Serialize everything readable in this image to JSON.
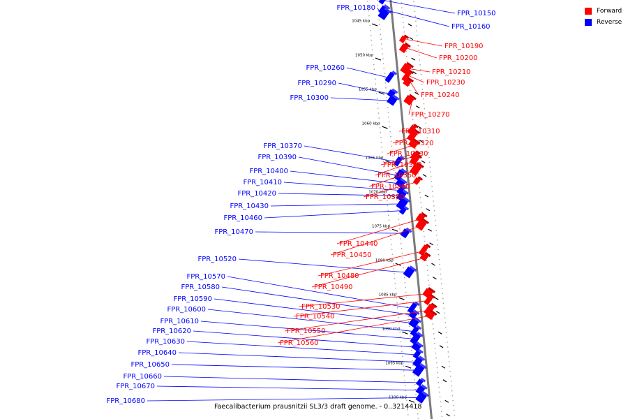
{
  "legend": {
    "forward_label": "Forward",
    "reverse_label": "Reverse",
    "forward_color": "#ff0000",
    "reverse_color": "#0000ff"
  },
  "caption": "Faecalibacterium prausnitzii SL3/3 draft genome. - 0..3214418",
  "axis": {
    "unit": "kbp",
    "ticks": [
      1045,
      1050,
      1055,
      1060,
      1065,
      1070,
      1075,
      1080,
      1085,
      1090,
      1095,
      1100
    ]
  },
  "reverse_genes": [
    {
      "label": "FPR_10150",
      "kbp": 1041.6
    },
    {
      "label": "FPR_10160",
      "kbp": 1043.0
    },
    {
      "label": "FPR_10180",
      "kbp": 1043.6
    },
    {
      "label": "FPR_10260",
      "kbp": 1052.8
    },
    {
      "label": "FPR_10290",
      "kbp": 1055.2
    },
    {
      "label": "FPR_10300",
      "kbp": 1056.2
    },
    {
      "label": "FPR_10370",
      "kbp": 1065.1
    },
    {
      "label": "FPR_10390",
      "kbp": 1067.1
    },
    {
      "label": "FPR_10400",
      "kbp": 1068.3
    },
    {
      "label": "FPR_10410",
      "kbp": 1069.3
    },
    {
      "label": "FPR_10420",
      "kbp": 1070.1
    },
    {
      "label": "FPR_10430",
      "kbp": 1071.3
    },
    {
      "label": "FPR_10460",
      "kbp": 1072.3
    },
    {
      "label": "FPR_10470",
      "kbp": 1075.6
    },
    {
      "label": "FPR_10520",
      "kbp": 1081.3
    },
    {
      "label": "FPR_10570",
      "kbp": 1086.5
    },
    {
      "label": "FPR_10580",
      "kbp": 1087.5
    },
    {
      "label": "FPR_10590",
      "kbp": 1088.7
    },
    {
      "label": "FPR_10600",
      "kbp": 1089.9
    },
    {
      "label": "FPR_10610",
      "kbp": 1091.0
    },
    {
      "label": "FPR_10620",
      "kbp": 1092.2
    },
    {
      "label": "FPR_10630",
      "kbp": 1093.3
    },
    {
      "label": "FPR_10640",
      "kbp": 1094.4
    },
    {
      "label": "FPR_10650",
      "kbp": 1095.6
    },
    {
      "label": "FPR_10660",
      "kbp": 1097.4
    },
    {
      "label": "FPR_10670",
      "kbp": 1098.5
    },
    {
      "label": "FPR_10680",
      "kbp": 1099.6
    }
  ],
  "forward_genes": [
    {
      "label": "FPR_10190",
      "kbp": 1047.5
    },
    {
      "label": "FPR_10200",
      "kbp": 1048.8
    },
    {
      "label": "FPR_10210",
      "kbp": 1051.8
    },
    {
      "label": "FPR_10230",
      "kbp": 1052.9
    },
    {
      "label": "FPR_10240",
      "kbp": 1053.8
    },
    {
      "label": "FPR_10270",
      "kbp": 1056.4
    },
    {
      "label": "FPR_10310",
      "kbp": 1060.7
    },
    {
      "label": "FPR_10320",
      "kbp": 1061.6
    },
    {
      "label": "FPR_10330",
      "kbp": 1062.8
    },
    {
      "label": "FPR_10340",
      "kbp": 1064.5
    },
    {
      "label": "FPR_10350",
      "kbp": 1065.1
    },
    {
      "label": "FPR_10360",
      "kbp": 1066.5
    },
    {
      "label": "FPR_10380",
      "kbp": 1068.2
    },
    {
      "label": "FPR_10440",
      "kbp": 1073.6
    },
    {
      "label": "FPR_10450",
      "kbp": 1074.6
    },
    {
      "label": "FPR_10480",
      "kbp": 1078.3
    },
    {
      "label": "FPR_10490",
      "kbp": 1079.3
    },
    {
      "label": "FPR_10530",
      "kbp": 1084.6
    },
    {
      "label": "FPR_10540",
      "kbp": 1085.6
    },
    {
      "label": "FPR_10550",
      "kbp": 1087.0
    },
    {
      "label": "FPR_10560",
      "kbp": 1087.8
    }
  ]
}
